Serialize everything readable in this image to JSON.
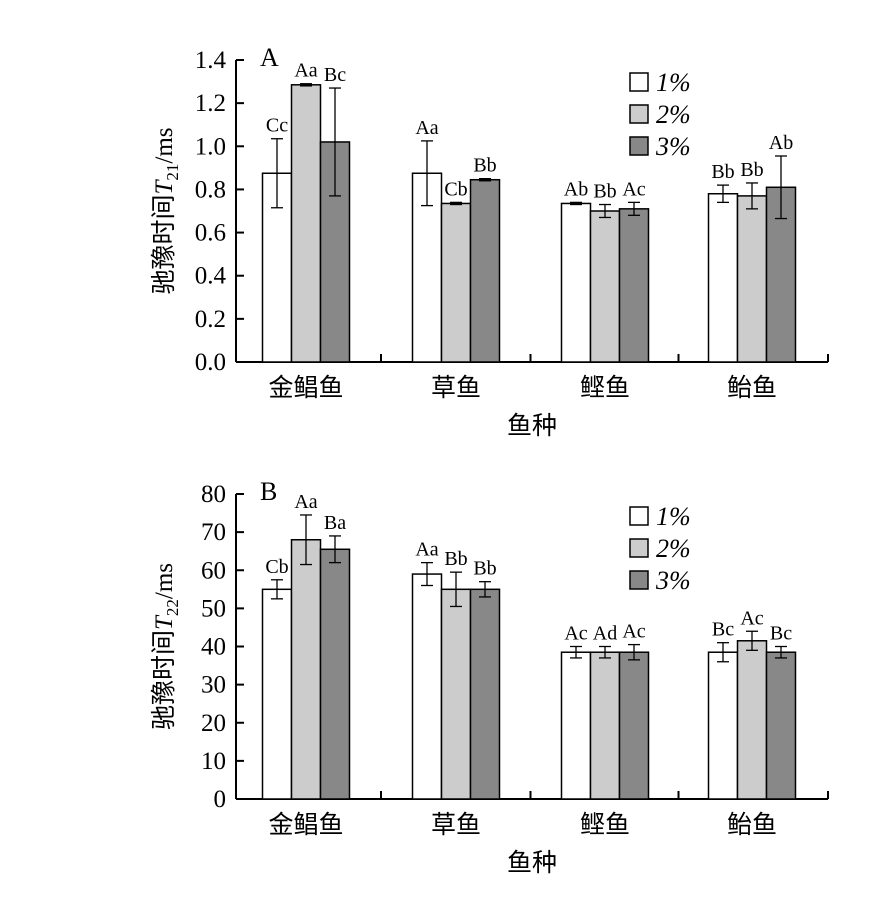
{
  "colors": {
    "series_1": "#ffffff",
    "series_2": "#cccccc",
    "series_3": "#888888",
    "stroke": "#000000"
  },
  "chart_data": [
    {
      "type": "bar",
      "panel": "A",
      "categories": [
        "金鲳鱼",
        "草鱼",
        "鲣鱼",
        "鲐鱼"
      ],
      "xlabel": "鱼种",
      "ylabel": "驰豫时间T21/ms",
      "ylabel_parts": {
        "prefix": "驰豫时间",
        "symbol": "T",
        "subscript": "21",
        "suffix": "/ms"
      },
      "ylim": [
        0,
        1.4
      ],
      "yticks": [
        "0.0",
        "0.2",
        "0.4",
        "0.6",
        "0.8",
        "1.0",
        "1.2",
        "1.4"
      ],
      "series": [
        {
          "name": "1%",
          "values": [
            0.875,
            0.875,
            0.735,
            0.78
          ],
          "errors": [
            0.16,
            0.15,
            0.005,
            0.04
          ],
          "labels": [
            "Cc",
            "Aa",
            "Ab",
            "Bb"
          ]
        },
        {
          "name": "2%",
          "values": [
            1.285,
            0.735,
            0.7,
            0.77
          ],
          "errors": [
            0.005,
            0.005,
            0.03,
            0.06
          ],
          "labels": [
            "Aa",
            "Cb",
            "Bb",
            "Bb"
          ]
        },
        {
          "name": "3%",
          "values": [
            1.02,
            0.845,
            0.71,
            0.81
          ],
          "errors": [
            0.25,
            0.005,
            0.03,
            0.145
          ],
          "labels": [
            "Bc",
            "Bb",
            "Ac",
            "Ab"
          ]
        }
      ],
      "legend_position": "top-right"
    },
    {
      "type": "bar",
      "panel": "B",
      "categories": [
        "金鲳鱼",
        "草鱼",
        "鲣鱼",
        "鲐鱼"
      ],
      "xlabel": "鱼种",
      "ylabel": "驰豫时间T22/ms",
      "ylabel_parts": {
        "prefix": "驰豫时间",
        "symbol": "T",
        "subscript": "22",
        "suffix": "/ms"
      },
      "ylim": [
        0,
        80
      ],
      "yticks": [
        "0",
        "10",
        "20",
        "30",
        "40",
        "50",
        "60",
        "70",
        "80"
      ],
      "series": [
        {
          "name": "1%",
          "values": [
            55,
            59,
            38.5,
            38.5
          ],
          "errors": [
            2.5,
            3,
            1.5,
            2.5
          ],
          "labels": [
            "Cb",
            "Aa",
            "Ac",
            "Bc"
          ]
        },
        {
          "name": "2%",
          "values": [
            68,
            55,
            38.5,
            41.5
          ],
          "errors": [
            6.5,
            4.5,
            1.5,
            2.5
          ],
          "labels": [
            "Aa",
            "Bb",
            "Ad",
            "Ac"
          ]
        },
        {
          "name": "3%",
          "values": [
            65.5,
            55,
            38.5,
            38.5
          ],
          "errors": [
            3.5,
            2,
            2,
            1.5
          ],
          "labels": [
            "Ba",
            "Bb",
            "Ac",
            "Bc"
          ]
        }
      ],
      "legend_position": "top-right"
    }
  ]
}
